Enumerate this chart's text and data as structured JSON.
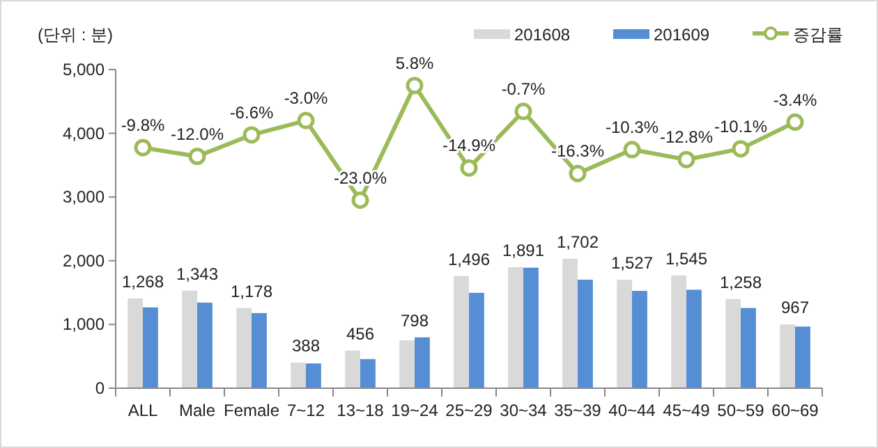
{
  "chart_data": {
    "type": "bar",
    "ylabel": "(단위 : 분)",
    "categories": [
      "ALL",
      "Male",
      "Female",
      "7~12",
      "13~18",
      "19~24",
      "25~29",
      "30~34",
      "35~39",
      "40~44",
      "45~49",
      "50~59",
      "60~69"
    ],
    "series": [
      {
        "name": "201608",
        "color": "#d9d9d9",
        "values": [
          1410,
          1530,
          1260,
          400,
          590,
          750,
          1760,
          1900,
          2030,
          1700,
          1770,
          1400,
          1000
        ]
      },
      {
        "name": "201609",
        "color": "#558ed5",
        "values": [
          1268,
          1343,
          1178,
          388,
          456,
          798,
          1496,
          1891,
          1702,
          1527,
          1545,
          1258,
          967
        ],
        "value_labels": [
          "1,268",
          "1,343",
          "1,178",
          "388",
          "456",
          "798",
          "1,496",
          "1,891",
          "1,702",
          "1,527",
          "1,545",
          "1,258",
          "967"
        ]
      },
      {
        "name": "증감률",
        "type": "line",
        "axis": "y2",
        "color": "#9bbb59",
        "marker": "circle",
        "values": [
          -9.8,
          -12.0,
          -6.6,
          -3.0,
          -23.0,
          5.8,
          -14.9,
          -0.7,
          -16.3,
          -10.3,
          -12.8,
          -10.1,
          -3.4
        ],
        "value_labels": [
          "-9.8%",
          "-12.0%",
          "-6.6%",
          "-3.0%",
          "-23.0%",
          "5.8%",
          "-14.9%",
          "-0.7%",
          "-16.3%",
          "-10.3%",
          "-12.8%",
          "-10.1%",
          "-3.4%"
        ]
      }
    ],
    "ylim": [
      0,
      5000
    ],
    "yticks": [
      {
        "value": 0,
        "label": "0"
      },
      {
        "value": 1000,
        "label": "1,000"
      },
      {
        "value": 2000,
        "label": "2,000"
      },
      {
        "value": 3000,
        "label": "3,000"
      },
      {
        "value": 4000,
        "label": "4,000"
      },
      {
        "value": 5000,
        "label": "5,000"
      }
    ],
    "y2lim": [
      -70.2,
      9.8
    ],
    "grid": false,
    "legend": "top right"
  }
}
